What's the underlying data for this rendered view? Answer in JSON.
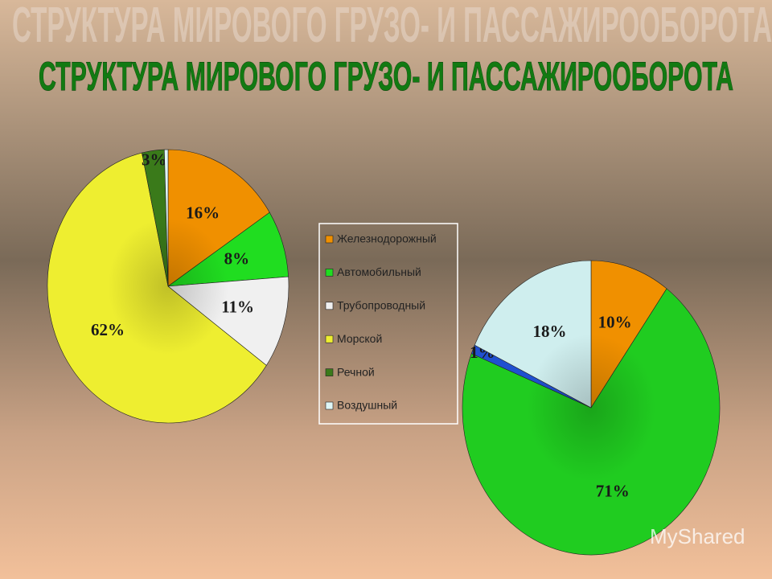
{
  "title": "СТРУКТУРА МИРОВОГО ГРУЗО- И ПАССАЖИРООБОРОТА",
  "watermark": "MyShared",
  "chart_data": [
    {
      "type": "pie",
      "categories": [
        "Железнодорожный",
        "Автомобильный",
        "Трубопроводный",
        "Морской",
        "Речной",
        "Воздушный"
      ],
      "values": [
        16,
        8,
        11,
        62,
        3,
        0.5
      ],
      "value_labels": [
        "16%",
        "8%",
        "11%",
        "62%",
        "3%",
        null
      ],
      "colors": [
        "#f09000",
        "#20dd20",
        "#f0f0f0",
        "#eeee30",
        "#3a7a1a",
        "#dff6f6"
      ],
      "legend": "center"
    },
    {
      "type": "pie",
      "values": [
        10,
        71,
        null,
        1,
        null,
        18
      ],
      "value_labels": [
        "10%",
        "71%",
        null,
        "1%",
        null,
        "18%"
      ],
      "colors": [
        "#f09000",
        "#20cc20",
        "#f0f0f0",
        "#2050d0",
        "#3a7a1a",
        "#cfeeee"
      ]
    }
  ]
}
